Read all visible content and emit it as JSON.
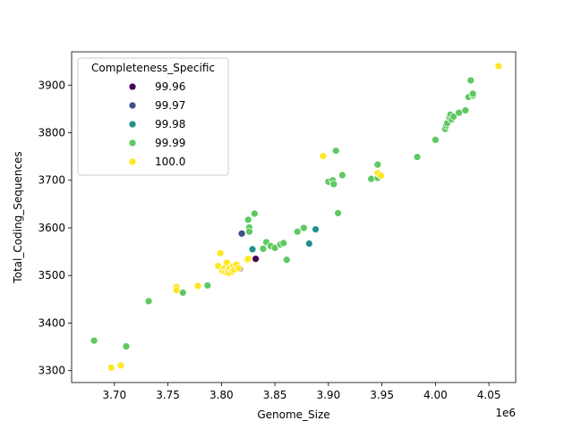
{
  "chart_data": {
    "type": "scatter",
    "title": "",
    "xlabel": "Genome_Size",
    "ylabel": "Total_Coding_Sequences",
    "x_offset_label": "1e6",
    "xlim": [
      3.66,
      4.075
    ],
    "ylim": [
      3275,
      3970
    ],
    "x_ticks": [
      3.7,
      3.75,
      3.8,
      3.85,
      3.9,
      3.95,
      4.0,
      4.05
    ],
    "x_tick_labels": [
      "3.70",
      "3.75",
      "3.80",
      "3.85",
      "3.90",
      "3.95",
      "4.00",
      "4.05"
    ],
    "y_ticks": [
      3300,
      3400,
      3500,
      3600,
      3700,
      3800,
      3900
    ],
    "y_tick_labels": [
      "3300",
      "3400",
      "3500",
      "3600",
      "3700",
      "3800",
      "3900"
    ],
    "grid": false,
    "legend": {
      "title": "Completeness_Specific",
      "placement": "top-left",
      "entries": [
        {
          "label": "99.96",
          "color": "#440154"
        },
        {
          "label": "99.97",
          "color": "#3b528b"
        },
        {
          "label": "99.98",
          "color": "#21918c"
        },
        {
          "label": "99.99",
          "color": "#5ec962"
        },
        {
          "label": "100.0",
          "color": "#fde725"
        }
      ]
    },
    "series": [
      {
        "key": "99.96",
        "color": "#440154",
        "points": [
          [
            3.817,
            3514
          ],
          [
            3.832,
            3535
          ]
        ]
      },
      {
        "key": "99.97",
        "color": "#3b528b",
        "points": [
          [
            3.819,
            3588
          ]
        ]
      },
      {
        "key": "99.98",
        "color": "#21918c",
        "points": [
          [
            3.829,
            3555
          ],
          [
            3.888,
            3597
          ],
          [
            3.882,
            3567
          ]
        ]
      },
      {
        "key": "99.99",
        "color": "#5ec962",
        "points": [
          [
            3.681,
            3363
          ],
          [
            3.711,
            3351
          ],
          [
            3.732,
            3446
          ],
          [
            3.764,
            3464
          ],
          [
            3.787,
            3479
          ],
          [
            3.825,
            3617
          ],
          [
            3.826,
            3601
          ],
          [
            3.826,
            3592
          ],
          [
            3.831,
            3630
          ],
          [
            3.839,
            3556
          ],
          [
            3.842,
            3570
          ],
          [
            3.846,
            3562
          ],
          [
            3.85,
            3558
          ],
          [
            3.855,
            3565
          ],
          [
            3.858,
            3568
          ],
          [
            3.861,
            3533
          ],
          [
            3.871,
            3592
          ],
          [
            3.877,
            3600
          ],
          [
            3.9,
            3697
          ],
          [
            3.904,
            3700
          ],
          [
            3.905,
            3692
          ],
          [
            3.907,
            3762
          ],
          [
            3.909,
            3631
          ],
          [
            3.913,
            3711
          ],
          [
            3.94,
            3703
          ],
          [
            3.946,
            3733
          ],
          [
            3.946,
            3705
          ],
          [
            3.983,
            3749
          ],
          [
            4.0,
            3785
          ],
          [
            4.009,
            3808
          ],
          [
            4.01,
            3815
          ],
          [
            4.011,
            3820
          ],
          [
            4.013,
            3832
          ],
          [
            4.014,
            3838
          ],
          [
            4.015,
            3828
          ],
          [
            4.017,
            3834
          ],
          [
            4.022,
            3842
          ],
          [
            4.028,
            3847
          ],
          [
            4.031,
            3875
          ],
          [
            4.033,
            3910
          ],
          [
            4.035,
            3878
          ],
          [
            4.035,
            3882
          ]
        ]
      },
      {
        "key": "100.0",
        "color": "#fde725",
        "points": [
          [
            3.697,
            3306
          ],
          [
            3.706,
            3311
          ],
          [
            3.758,
            3476
          ],
          [
            3.758,
            3469
          ],
          [
            3.778,
            3478
          ],
          [
            3.797,
            3520
          ],
          [
            3.799,
            3547
          ],
          [
            3.801,
            3510
          ],
          [
            3.803,
            3515
          ],
          [
            3.804,
            3507
          ],
          [
            3.805,
            3527
          ],
          [
            3.806,
            3510
          ],
          [
            3.807,
            3505
          ],
          [
            3.808,
            3516
          ],
          [
            3.81,
            3508
          ],
          [
            3.811,
            3520
          ],
          [
            3.812,
            3512
          ],
          [
            3.814,
            3523
          ],
          [
            3.816,
            3515
          ],
          [
            3.824,
            3533
          ],
          [
            3.825,
            3535
          ],
          [
            3.895,
            3751
          ],
          [
            3.946,
            3715
          ],
          [
            3.949,
            3710
          ],
          [
            4.059,
            3940
          ]
        ]
      }
    ]
  }
}
